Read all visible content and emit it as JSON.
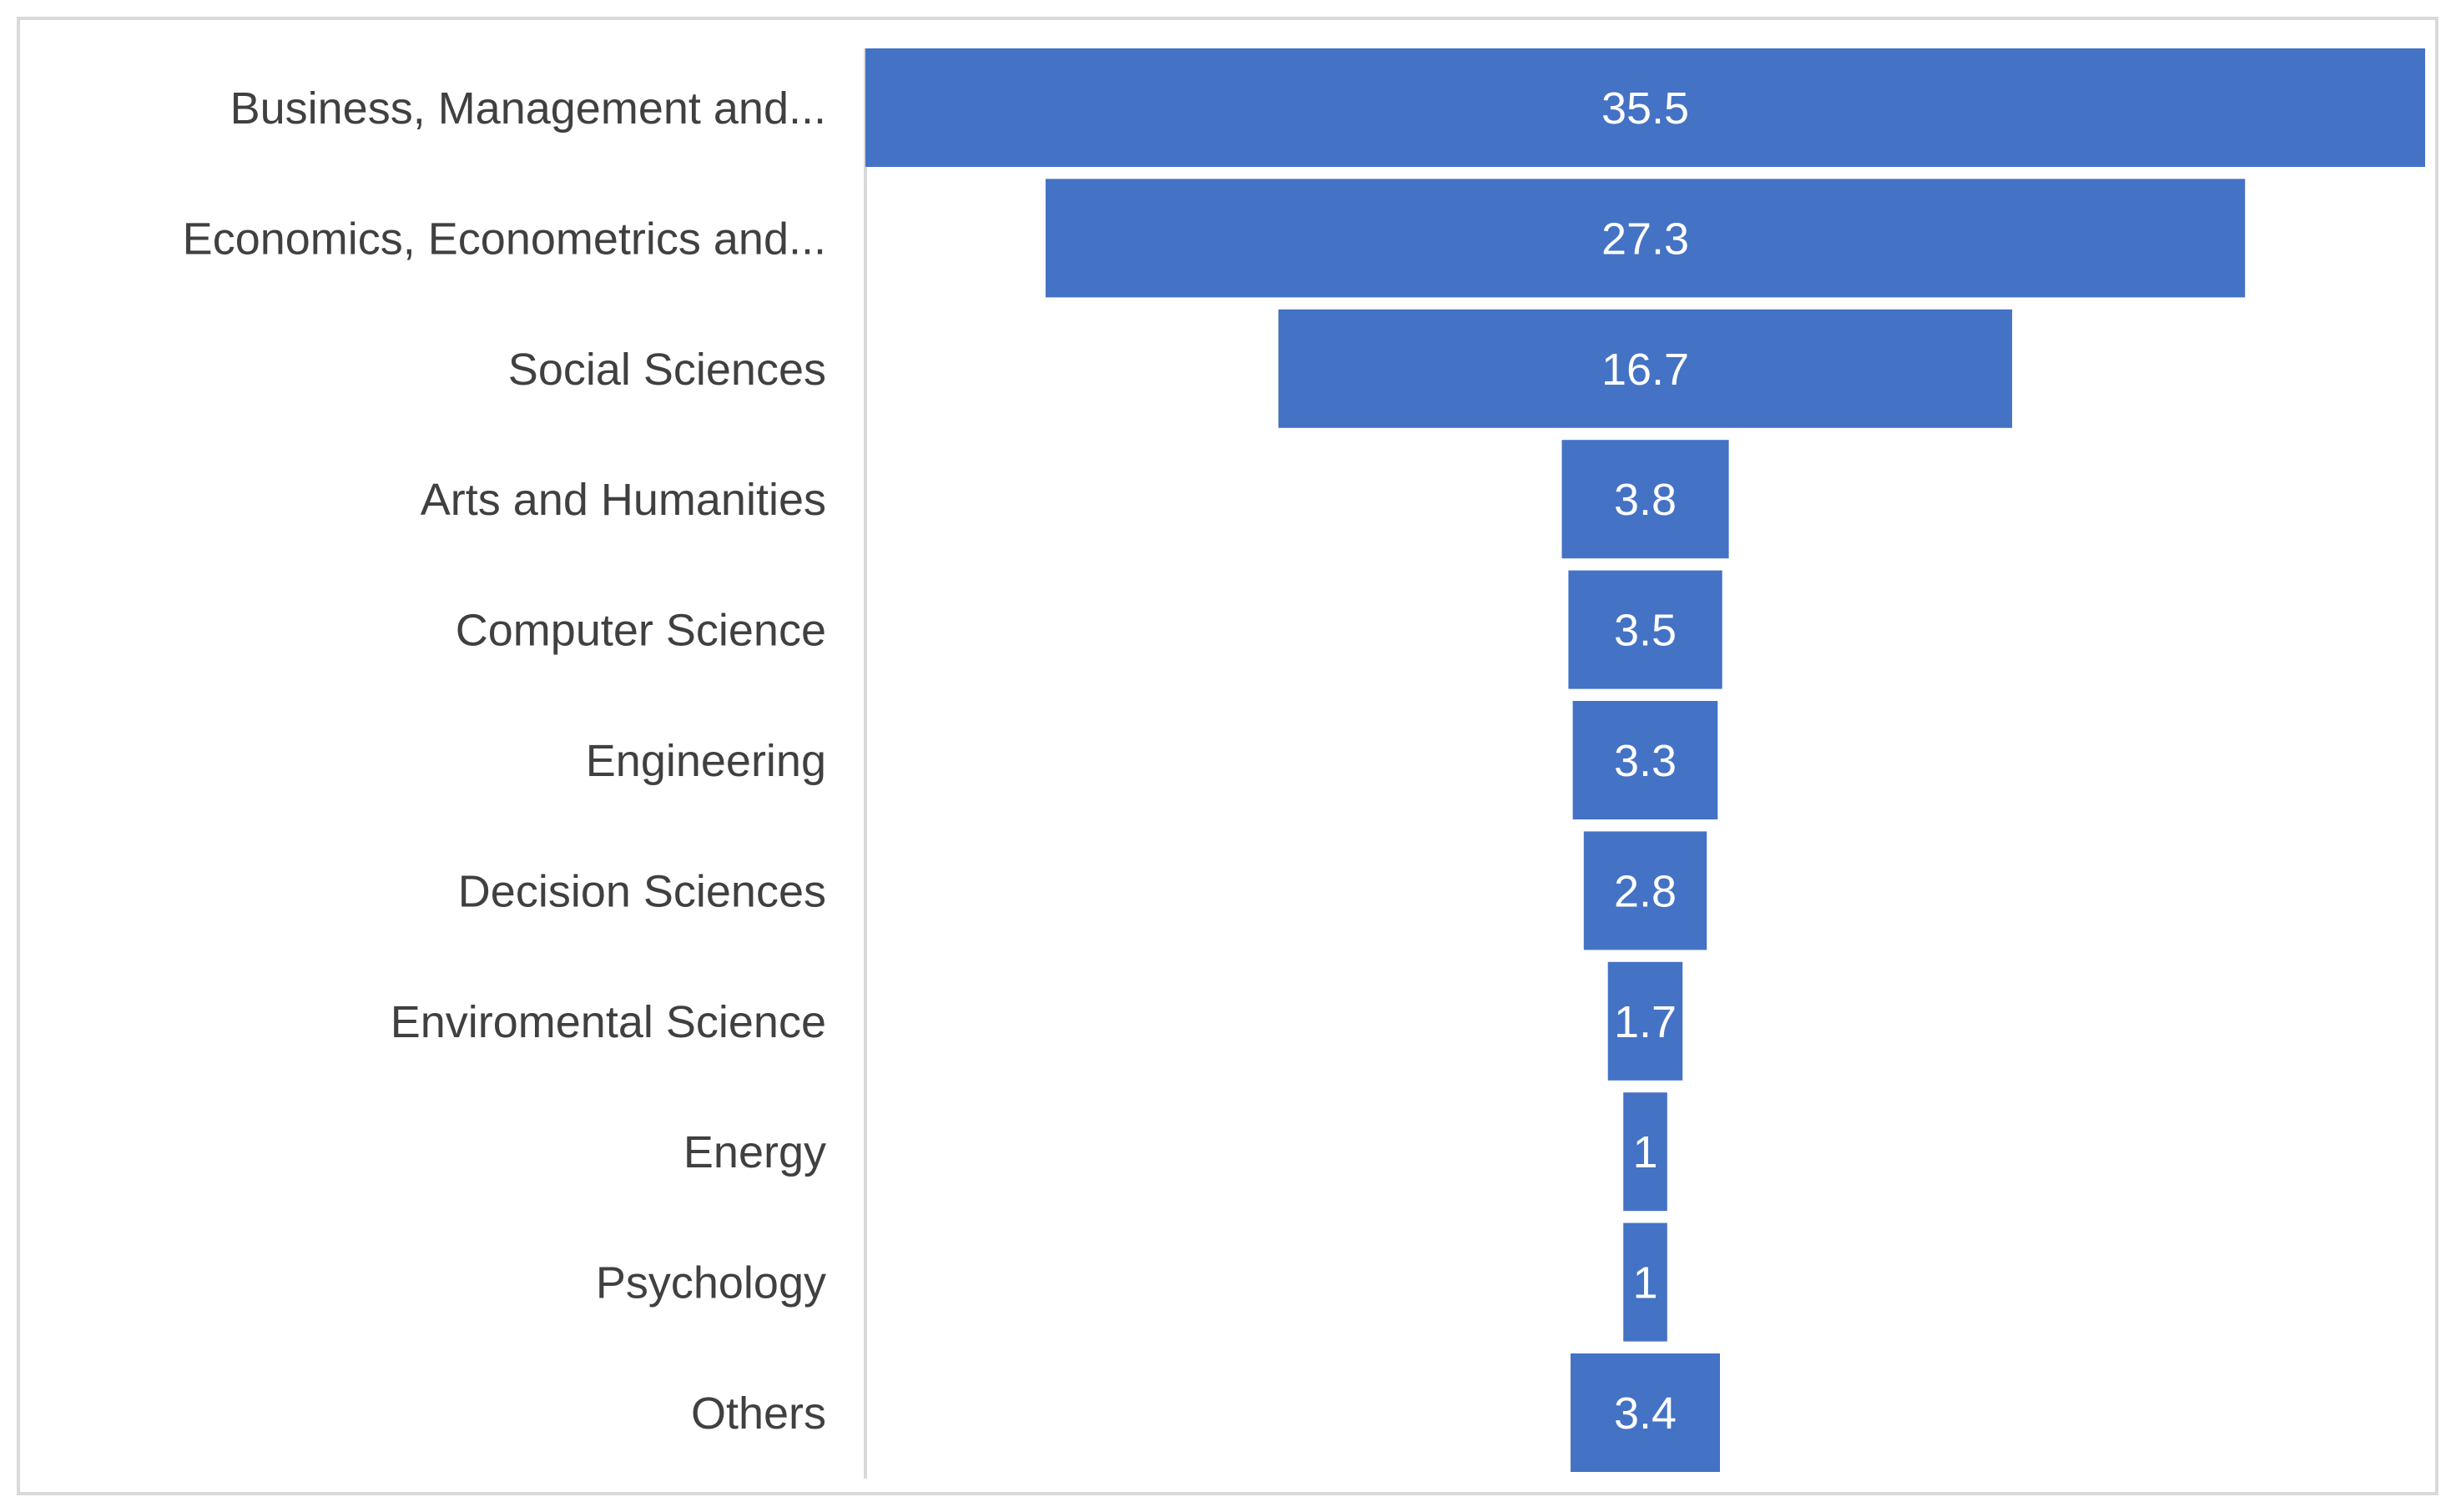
{
  "chart_data": {
    "type": "bar",
    "orientation": "horizontal",
    "style": "funnel",
    "categories": [
      "Business, Management and...",
      "Economics, Econometrics and...",
      "Social Sciences",
      "Arts and Humanities",
      "Computer Science",
      "Engineering",
      "Decision Sciences",
      "Enviromental Science",
      "Energy",
      "Psychology",
      "Others"
    ],
    "values": [
      35.5,
      27.3,
      16.7,
      3.8,
      3.5,
      3.3,
      2.8,
      1.7,
      1,
      1,
      3.4
    ],
    "title": "",
    "xlabel": "",
    "ylabel": "",
    "xlim": [
      0,
      35.5
    ],
    "grid": false,
    "legend": "none",
    "data_labels": true
  },
  "colors": {
    "bar": "#4472c4",
    "bar_label": "#ffffff",
    "category_label": "#404040",
    "axis_line": "#d9d9d9",
    "frame": "#d9d9d9"
  }
}
